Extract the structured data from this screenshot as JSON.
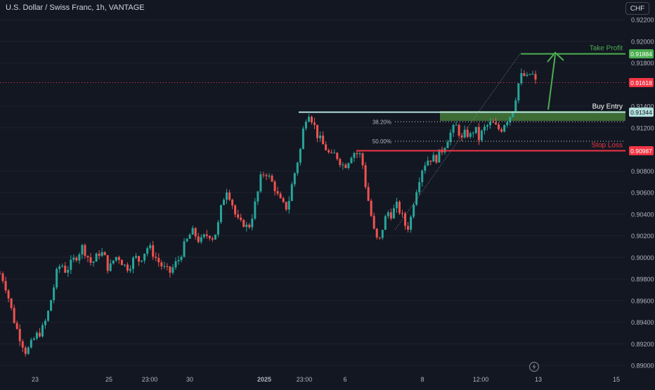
{
  "header": {
    "title": "U.S. Dollar / Swiss Franc, 1h, VANTAGE",
    "currency_button": "CHF"
  },
  "colors": {
    "background": "#131722",
    "bull": "#26a69a",
    "bear": "#ef5350",
    "axis_text": "#b2b5be",
    "grid": "#1e222d",
    "take_profit": "#4caf50",
    "stop_loss": "#f23645",
    "entry": "#b2dfdb",
    "zone": "#4e8a3c",
    "current_price": "#f23645"
  },
  "chart_data": {
    "type": "candlestick",
    "symbol": "USDCHF",
    "timeframe": "1h",
    "ylim": [
      0.89,
      0.922
    ],
    "y_ticks": [
      "0.89000",
      "0.89200",
      "0.89400",
      "0.89600",
      "0.89800",
      "0.90000",
      "0.90200",
      "0.90400",
      "0.90600",
      "0.90800",
      "0.91200",
      "0.91400",
      "0.91800",
      "0.92000",
      "0.92200"
    ],
    "x_ticks": [
      "23",
      "25",
      "23:00",
      "30",
      "2025",
      "23:00",
      "6",
      "8",
      "12:00",
      "13",
      "15"
    ],
    "levels": {
      "take_profit": {
        "label": "Take Profit",
        "price_label": "0.91884",
        "value": 0.91884
      },
      "current_price": {
        "price_label": "0.91618",
        "value": 0.91618
      },
      "buy_entry": {
        "label": "Buy Entry",
        "price_label": "0.91344",
        "value": 0.91344
      },
      "stop_loss": {
        "label": "Stop Loss",
        "price_label": "0.90987",
        "value": 0.90987
      }
    },
    "fibonacci": [
      {
        "label": "38.20%",
        "value": 0.91255
      },
      {
        "label": "50.00%",
        "value": 0.91075
      }
    ],
    "close_path": [
      0.8985,
      0.8978,
      0.8962,
      0.8945,
      0.8932,
      0.8922,
      0.8912,
      0.8918,
      0.8926,
      0.893,
      0.8935,
      0.8948,
      0.8966,
      0.8985,
      0.8995,
      0.8988,
      0.8992,
      0.8998,
      0.9004,
      0.901,
      0.9002,
      0.8994,
      0.8999,
      0.9006,
      0.9,
      0.8988,
      0.8997,
      0.9002,
      0.8996,
      0.899,
      0.8994,
      0.9,
      0.8997,
      0.9004,
      0.901,
      0.9005,
      0.8998,
      0.8993,
      0.8988,
      0.8986,
      0.8992,
      0.8998,
      0.9008,
      0.9016,
      0.9024,
      0.902,
      0.9014,
      0.9019,
      0.9022,
      0.9018,
      0.9028,
      0.905,
      0.9064,
      0.9055,
      0.904,
      0.903,
      0.9032,
      0.9026,
      0.904,
      0.9056,
      0.9075,
      0.908,
      0.9072,
      0.9066,
      0.9054,
      0.9048,
      0.9046,
      0.9066,
      0.9084,
      0.91,
      0.9128,
      0.9135,
      0.9124,
      0.9112,
      0.9105,
      0.91,
      0.9092,
      0.9096,
      0.909,
      0.9084,
      0.909,
      0.9098,
      0.9096,
      0.9094,
      0.9066,
      0.9044,
      0.9022,
      0.9012,
      0.903,
      0.9042,
      0.904,
      0.9048,
      0.9042,
      0.903,
      0.9028,
      0.9052,
      0.907,
      0.9083,
      0.909,
      0.9092,
      0.9091,
      0.9096,
      0.9103,
      0.9112,
      0.9118,
      0.9122,
      0.9108,
      0.9116,
      0.9112,
      0.912,
      0.911,
      0.9118,
      0.9122,
      0.9124,
      0.912,
      0.9118,
      0.9126,
      0.913,
      0.914,
      0.916,
      0.917,
      0.9165,
      0.9172,
      0.9162
    ],
    "candle_x_range": [
      0,
      762
    ]
  }
}
